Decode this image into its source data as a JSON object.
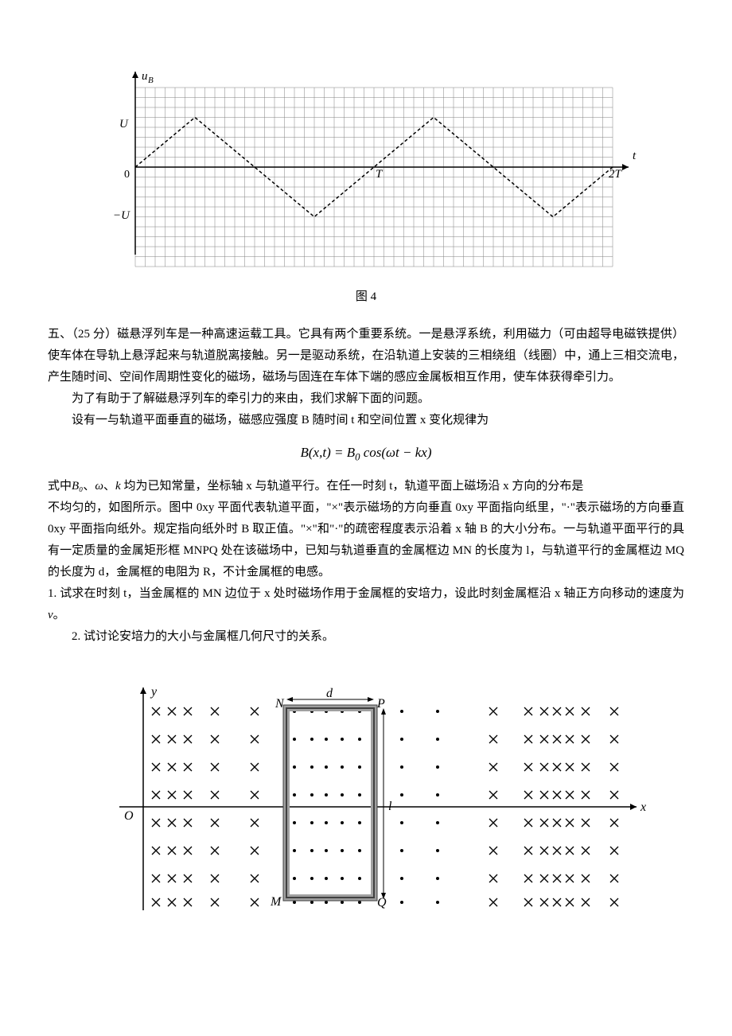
{
  "chart1": {
    "type": "line",
    "x_axis_label": "t",
    "y_axis_label": "u_B",
    "y_ticks": [
      "U",
      "-U"
    ],
    "x_ticks": [
      "T",
      "2T"
    ],
    "origin_label": "0",
    "grid_color": "#808080",
    "axis_color": "#000000",
    "line_color": "#000000",
    "line_style": "dashed",
    "background_color": "#ffffff",
    "grid_cols": 48,
    "grid_rows": 18,
    "amplitude": 5,
    "period_cells": 24
  },
  "fig1_caption": "图 4",
  "problem_title": "五、（25 分）磁悬浮列车是一种高速运载工具。它具有两个重要系统。一是悬浮系统，利用磁力（可由超导电磁铁提供）使车体在导轨上悬浮起来与轨道脱离接触。另一是驱动系统，在沿轨道上安装的三相绕组（线圈）中，通上三相交流电，产生随时间、空间作周期性变化的磁场，磁场与固连在车体下端的感应金属板相互作用，使车体获得牵引力。",
  "para2": "为了有助于了解磁悬浮列车的牵引力的来由，我们求解下面的问题。",
  "para3": "设有一与轨道平面垂直的磁场，磁感应强度 B 随时间 t 和空间位置 x 变化规律为",
  "formula": "B(x,t) = B₀ cos(ωt − kx)",
  "para4_pre": "式中",
  "para4_b0": "B₀",
  "para4_sep1": "、",
  "para4_omega": "ω",
  "para4_sep2": "、",
  "para4_k": "k",
  "para4_post": " 均为已知常量，坐标轴 x 与轨道平行。在任一时刻 t，轨道平面上磁场沿 x 方向的分布是",
  "para5": "不均匀的，如图所示。图中 0xy 平面代表轨道平面，\"×\"表示磁场的方向垂直 0xy 平面指向纸里，\"·\"表示磁场的方向垂直 0xy 平面指向纸外。规定指向纸外时 B 取正值。\"×\"和\"·\"的疏密程度表示沿着 x 轴 B 的大小分布。一与轨道平面平行的具有一定质量的金属矩形框 MNPQ 处在该磁场中，已知与轨道垂直的金属框边 MN 的长度为 l，与轨道平行的金属框边 MQ 的长度为 d，金属框的电阻为 R，不计金属框的电感。",
  "q1_pre": "1. 试求在时刻 t，当金属框的 MN 边位于 x 处时磁场作用于金属框的安培力，设此时刻金属框沿 x 轴正方向移动的速度为",
  "q1_v": "v",
  "q1_post": "。",
  "q2": "2. 试讨论安培力的大小与金属框几何尺寸的关系。",
  "diagram2": {
    "x_label": "x",
    "y_label": "y",
    "origin_label": "O",
    "frame_label_N": "N",
    "frame_label_P": "P",
    "frame_label_M": "M",
    "frame_label_Q": "Q",
    "dim_d": "d",
    "dim_l": "l",
    "axis_color": "#000000",
    "frame_color": "#606060",
    "frame_fill": "#d0d0d0",
    "symbol_color": "#000000",
    "background_color": "#ffffff"
  }
}
